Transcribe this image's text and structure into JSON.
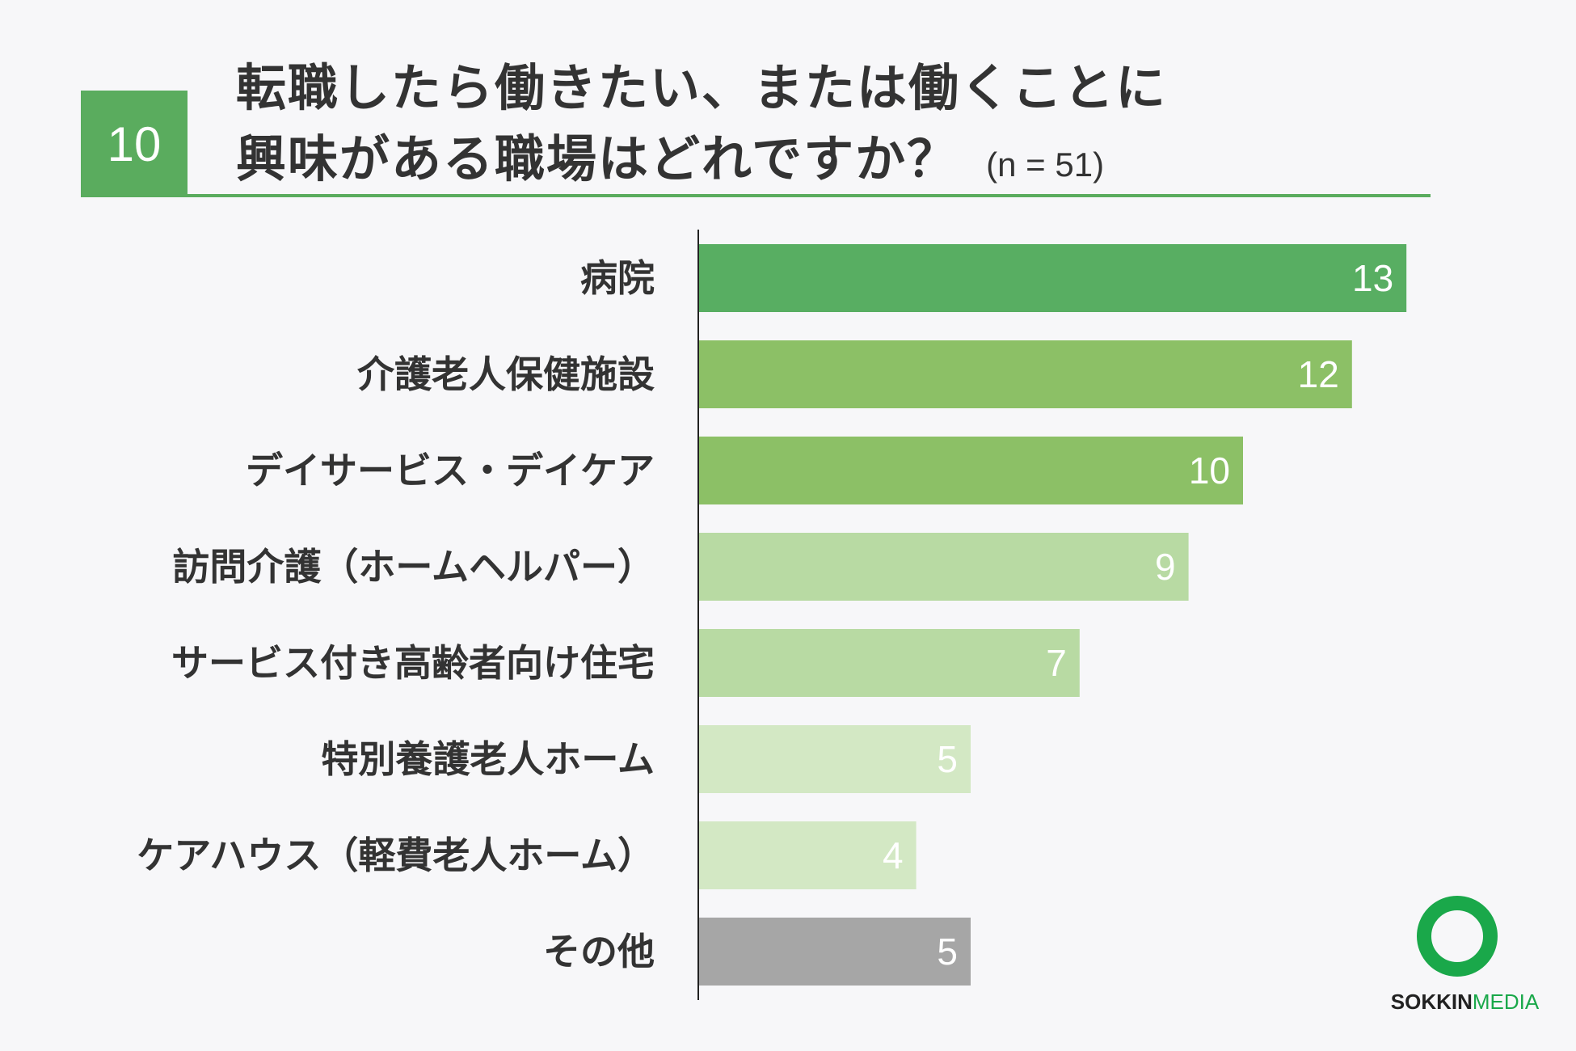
{
  "header": {
    "number": "10",
    "title_line1": "転職したら働きたい、または働くことに",
    "title_line2": "興味がある職場はどれですか？",
    "sample": "(n = 51)"
  },
  "colors": {
    "accent": "#5aac5e",
    "bar_darkest": "#58ae62",
    "bar_dark": "#8cc066",
    "bar_mid": "#b8daa3",
    "bar_light": "#d3e8c4",
    "bar_other": "#a6a6a6"
  },
  "chart_data": {
    "type": "bar",
    "orientation": "horizontal",
    "categories": [
      "病院",
      "介護老人保健施設",
      "デイサービス・デイケア",
      "訪問介護（ホームヘルパー）",
      "サービス付き高齢者向け住宅",
      "特別養護老人ホーム",
      "ケアハウス（軽費老人ホーム）",
      "その他"
    ],
    "values": [
      13,
      12,
      10,
      9,
      7,
      5,
      4,
      5
    ],
    "bar_colors": [
      "#58ae62",
      "#8cc066",
      "#8cc066",
      "#b8daa3",
      "#b8daa3",
      "#d3e8c4",
      "#d3e8c4",
      "#a6a6a6"
    ],
    "xlim": [
      0,
      13
    ],
    "data_labels": true,
    "grid": false
  },
  "logo": {
    "text_bold": "SOKKIN",
    "text_light": "MEDIA"
  }
}
